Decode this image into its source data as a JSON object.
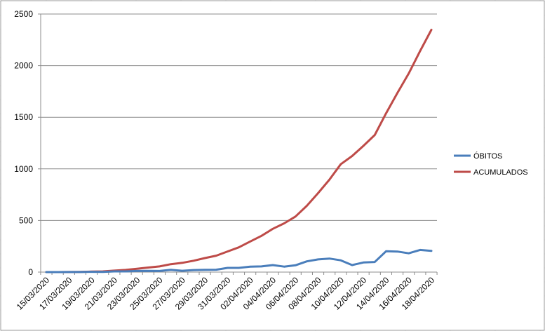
{
  "sheet": {
    "grid_color": "#d4d4d4",
    "frame_color": "#9a9a9a"
  },
  "chart_data": {
    "type": "line",
    "x": [
      "15/03/2020",
      "16/03/2020",
      "17/03/2020",
      "18/03/2020",
      "19/03/2020",
      "20/03/2020",
      "21/03/2020",
      "22/03/2020",
      "23/03/2020",
      "24/03/2020",
      "25/03/2020",
      "26/03/2020",
      "27/03/2020",
      "28/03/2020",
      "29/03/2020",
      "30/03/2020",
      "31/03/2020",
      "01/04/2020",
      "02/04/2020",
      "03/04/2020",
      "04/04/2020",
      "05/04/2020",
      "06/04/2020",
      "07/04/2020",
      "08/04/2020",
      "09/04/2020",
      "10/04/2020",
      "11/04/2020",
      "12/04/2020",
      "13/04/2020",
      "14/04/2020",
      "15/04/2020",
      "16/04/2020",
      "17/04/2020",
      "18/04/2020"
    ],
    "x_tick_labels": [
      "15/03/2020",
      "17/03/2020",
      "19/03/2020",
      "21/03/2020",
      "23/03/2020",
      "25/03/2020",
      "27/03/2020",
      "29/03/2020",
      "31/03/2020",
      "02/04/2020",
      "04/04/2020",
      "06/04/2020",
      "08/04/2020",
      "10/04/2020",
      "12/04/2020",
      "14/04/2020",
      "16/04/2020",
      "18/04/2020"
    ],
    "series": [
      {
        "name": "ÓBITOS",
        "color": "#4a7ebb",
        "values": [
          0,
          0,
          1,
          1,
          3,
          2,
          7,
          7,
          11,
          12,
          11,
          22,
          13,
          20,
          22,
          23,
          41,
          41,
          53,
          55,
          68,
          53,
          66,
          104,
          123,
          131,
          114,
          68,
          93,
          98,
          202,
          199,
          182,
          215,
          206
        ]
      },
      {
        "name": "ACUMULADOS",
        "color": "#be4b48",
        "values": [
          0,
          0,
          1,
          2,
          5,
          7,
          14,
          21,
          32,
          44,
          55,
          77,
          90,
          110,
          136,
          159,
          200,
          240,
          296,
          351,
          419,
          472,
          538,
          642,
          765,
          896,
          1045,
          1124,
          1223,
          1328,
          1538,
          1736,
          1924,
          2141,
          2347
        ]
      }
    ],
    "ylim": [
      0,
      2500
    ],
    "y_ticks": [
      0,
      500,
      1000,
      1500,
      2000,
      2500
    ],
    "grid": true,
    "legend": "right"
  }
}
